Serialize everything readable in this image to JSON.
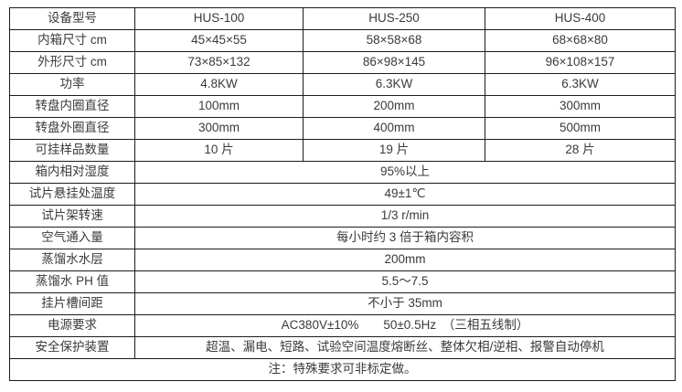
{
  "page": {
    "background_color": "#ffffff",
    "border_color": "#1c1c1c",
    "text_color": "#3a3a3a"
  },
  "table": {
    "columns": [
      "设备型号",
      "HUS-100",
      "HUS-250",
      "HUS-400"
    ],
    "rows": [
      {
        "label": "设备型号",
        "values": [
          "HUS-100",
          "HUS-250",
          "HUS-400"
        ]
      },
      {
        "label": "内箱尺寸 cm",
        "values": [
          "45×45×55",
          "58×58×68",
          "68×68×80"
        ]
      },
      {
        "label": "外形尺寸 cm",
        "values": [
          "73×85×132",
          "86×98×145",
          "96×108×157"
        ]
      },
      {
        "label": "功率",
        "values": [
          "4.8KW",
          "6.3KW",
          "6.3KW"
        ]
      },
      {
        "label": "转盘内圈直径",
        "values": [
          "100mm",
          "200mm",
          "300mm"
        ]
      },
      {
        "label": "转盘外圈直径",
        "values": [
          "300mm",
          "400mm",
          "500mm"
        ]
      },
      {
        "label": "可挂样品数量",
        "values": [
          "10 片",
          "19 片",
          "28 片"
        ]
      },
      {
        "label": "箱内相对湿度",
        "values": [
          "95%以上"
        ]
      },
      {
        "label": "试片悬挂处温度",
        "values": [
          "49±1℃"
        ]
      },
      {
        "label": "试片架转速",
        "values": [
          "1/3 r/min"
        ]
      },
      {
        "label": "空气通入量",
        "values": [
          "每小时约 3 倍于箱内容积"
        ]
      },
      {
        "label": "蒸馏水水层",
        "values": [
          "200mm"
        ]
      },
      {
        "label": "蒸馏水 PH 值",
        "values": [
          "5.5～7.5"
        ]
      },
      {
        "label": "挂片槽间距",
        "values": [
          "不小于 35mm"
        ]
      },
      {
        "label": "电源要求",
        "values": [
          "AC380V±10%　　50±0.5Hz　（三相五线制）"
        ]
      },
      {
        "label": "安全保护装置",
        "values": [
          "超温、漏电、短路、试验空间温度熔断丝、整体欠相/逆相、报警自动停机"
        ]
      }
    ],
    "note": "注：特殊要求可非标定做。"
  }
}
